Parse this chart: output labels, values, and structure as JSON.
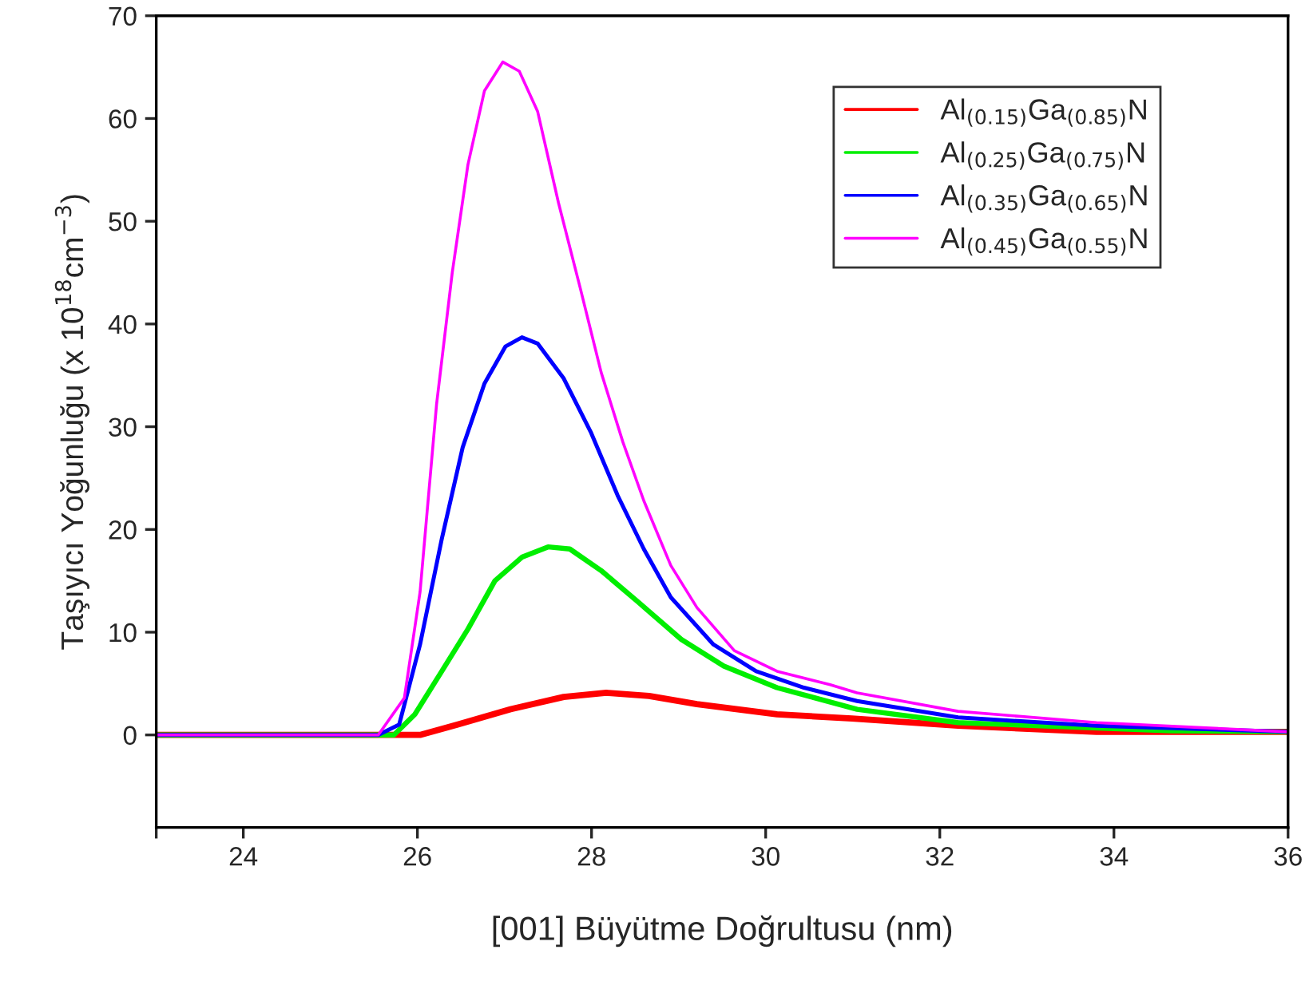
{
  "chart_data": {
    "type": "line",
    "xlabel": "[001] Büyütme Doğrultusu (nm)",
    "ylabel": "Taşıyıcı Yoğunluğu (x 10$^{18}$cm$^{−3}$)",
    "xlim": [
      23,
      36
    ],
    "xticks": [
      {
        "value": 23,
        "label": null
      },
      24,
      26,
      28,
      30,
      32,
      34,
      36
    ],
    "ylim": [
      -9,
      70
    ],
    "yticks": [
      0,
      10,
      20,
      30,
      40,
      50,
      60,
      70
    ],
    "grid": false,
    "legend": "top right",
    "line_style": "solid",
    "series": [
      {
        "name": "Al$_{(0.15)}$Ga$_{(0.85)}$N",
        "color": "#ff0000",
        "x": [
          23,
          26.03,
          26.46,
          27.07,
          27.68,
          28.17,
          28.66,
          29.21,
          30.13,
          30.99,
          32.21,
          33.8,
          36
        ],
        "values": [
          0,
          0,
          1.0,
          2.5,
          3.7,
          4.1,
          3.8,
          3.0,
          2.0,
          1.6,
          0.9,
          0.3,
          0.3
        ]
      },
      {
        "name": "Al$_{(0.25)}$Ga$_{(0.75)}$N",
        "color": "#00ee00",
        "x": [
          23,
          25.73,
          25.97,
          26.28,
          26.58,
          26.89,
          27.2,
          27.5,
          27.75,
          28.11,
          28.54,
          29.03,
          29.52,
          30.13,
          31.05,
          32.21,
          34.65,
          36
        ],
        "values": [
          0,
          0,
          2.0,
          6.2,
          10.3,
          15.0,
          17.3,
          18.3,
          18.1,
          16.0,
          12.9,
          9.3,
          6.7,
          4.6,
          2.5,
          1.2,
          0.4,
          0.3
        ]
      },
      {
        "name": "Al$_{(0.35)}$Ga$_{(0.65)}$N",
        "color": "#0000ff",
        "x": [
          23,
          25.55,
          25.79,
          26.03,
          26.28,
          26.52,
          26.77,
          27.01,
          27.2,
          27.38,
          27.68,
          27.99,
          28.3,
          28.6,
          28.91,
          29.4,
          29.89,
          30.44,
          31.05,
          32.21,
          33.8,
          36
        ],
        "values": [
          0,
          0,
          1.0,
          8.8,
          19.1,
          28.0,
          34.2,
          37.8,
          38.7,
          38.1,
          34.7,
          29.5,
          23.3,
          18.1,
          13.4,
          8.8,
          6.2,
          4.6,
          3.3,
          1.7,
          0.9,
          0.3
        ]
      },
      {
        "name": "Al$_{(0.45)}$Ga$_{(0.55)}$N",
        "color": "#ff00ff",
        "x": [
          23,
          25.55,
          25.85,
          26.03,
          26.22,
          26.4,
          26.58,
          26.77,
          26.98,
          27.17,
          27.38,
          27.62,
          27.87,
          28.11,
          28.36,
          28.6,
          28.91,
          29.21,
          29.64,
          30.13,
          30.74,
          31.05,
          32.21,
          33.8,
          36
        ],
        "values": [
          0,
          0,
          3.6,
          13.9,
          32.2,
          45.0,
          55.5,
          62.7,
          65.5,
          64.6,
          60.7,
          51.8,
          43.5,
          35.3,
          28.5,
          22.8,
          16.5,
          12.4,
          8.2,
          6.2,
          4.9,
          4.1,
          2.3,
          1.2,
          0.3
        ]
      }
    ]
  }
}
